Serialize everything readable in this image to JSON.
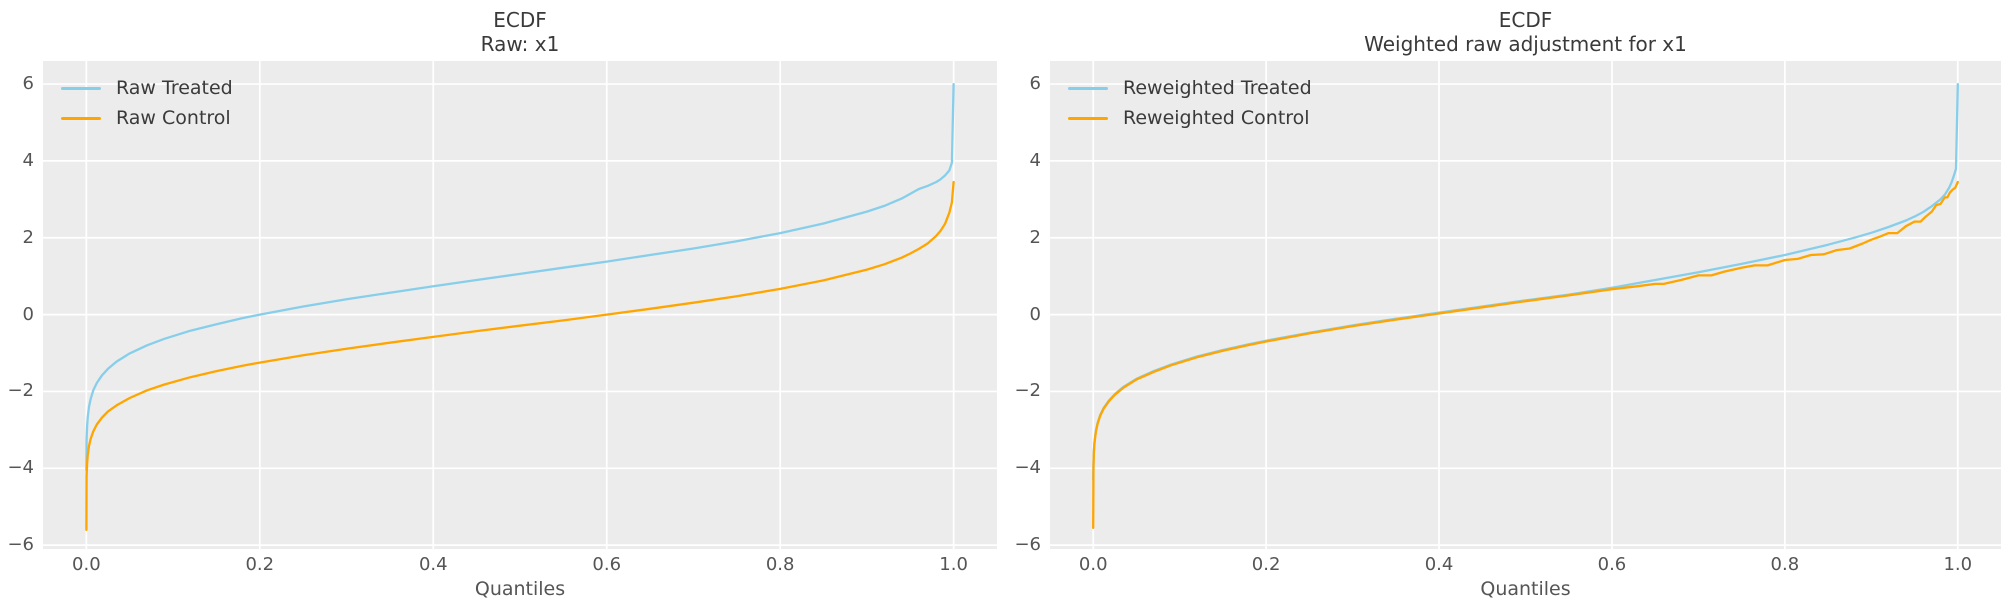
{
  "figure": {
    "background": "#ffffff",
    "plot_background": "#ececec",
    "grid_color": "#ffffff",
    "tick_color": "#555555",
    "title_color": "#3a3a3a"
  },
  "chart_data": [
    {
      "type": "line",
      "title_line1": "ECDF",
      "title_line2": "Raw: x1",
      "xlabel": "Quantiles",
      "xlim": [
        -0.05,
        1.05
      ],
      "ylim": [
        -6.1,
        6.6
      ],
      "grid": true,
      "legend_position": "upper left",
      "xticks": [
        {
          "v": 0.0,
          "label": "0.0"
        },
        {
          "v": 0.2,
          "label": "0.2"
        },
        {
          "v": 0.4,
          "label": "0.4"
        },
        {
          "v": 0.6,
          "label": "0.6"
        },
        {
          "v": 0.8,
          "label": "0.8"
        },
        {
          "v": 1.0,
          "label": "1.0"
        }
      ],
      "yticks": [
        {
          "v": 6,
          "label": "6"
        },
        {
          "v": 4,
          "label": "4"
        },
        {
          "v": 2,
          "label": "2"
        },
        {
          "v": 0,
          "label": "0"
        },
        {
          "v": -2,
          "label": "−2"
        },
        {
          "v": -4,
          "label": "−4"
        },
        {
          "v": -6,
          "label": "−6"
        }
      ],
      "series": [
        {
          "name": "Raw Treated",
          "color": "#87ceeb",
          "points": [
            [
              0,
              -4.05
            ],
            [
              0.0003,
              -3.26
            ],
            [
              0.0008,
              -2.92
            ],
            [
              0.0015,
              -2.68
            ],
            [
              0.003,
              -2.4
            ],
            [
              0.005,
              -2.19
            ],
            [
              0.008,
              -1.97
            ],
            [
              0.012,
              -1.78
            ],
            [
              0.018,
              -1.58
            ],
            [
              0.025,
              -1.41
            ],
            [
              0.035,
              -1.22
            ],
            [
              0.05,
              -1.01
            ],
            [
              0.07,
              -0.8
            ],
            [
              0.09,
              -0.63
            ],
            [
              0.12,
              -0.42
            ],
            [
              0.15,
              -0.25
            ],
            [
              0.18,
              -0.09
            ],
            [
              0.2,
              0.0
            ],
            [
              0.25,
              0.21
            ],
            [
              0.3,
              0.4
            ],
            [
              0.35,
              0.57
            ],
            [
              0.4,
              0.74
            ],
            [
              0.45,
              0.9
            ],
            [
              0.5,
              1.06
            ],
            [
              0.55,
              1.22
            ],
            [
              0.6,
              1.38
            ],
            [
              0.65,
              1.55
            ],
            [
              0.7,
              1.72
            ],
            [
              0.75,
              1.91
            ],
            [
              0.8,
              2.12
            ],
            [
              0.85,
              2.37
            ],
            [
              0.9,
              2.68
            ],
            [
              0.92,
              2.83
            ],
            [
              0.94,
              3.02
            ],
            [
              0.96,
              3.27
            ],
            [
              0.97,
              3.35
            ],
            [
              0.98,
              3.45
            ],
            [
              0.985,
              3.52
            ],
            [
              0.99,
              3.62
            ],
            [
              0.995,
              3.75
            ],
            [
              0.998,
              3.95
            ],
            [
              1.0,
              6.0
            ]
          ]
        },
        {
          "name": "Raw Control",
          "color": "#ffa500",
          "points": [
            [
              0,
              -5.6
            ],
            [
              0.0003,
              -4.2
            ],
            [
              0.0008,
              -3.89
            ],
            [
              0.0015,
              -3.67
            ],
            [
              0.003,
              -3.42
            ],
            [
              0.005,
              -3.23
            ],
            [
              0.008,
              -3.04
            ],
            [
              0.012,
              -2.86
            ],
            [
              0.018,
              -2.68
            ],
            [
              0.025,
              -2.52
            ],
            [
              0.035,
              -2.36
            ],
            [
              0.05,
              -2.17
            ],
            [
              0.07,
              -1.97
            ],
            [
              0.09,
              -1.82
            ],
            [
              0.12,
              -1.63
            ],
            [
              0.15,
              -1.47
            ],
            [
              0.18,
              -1.33
            ],
            [
              0.2,
              -1.25
            ],
            [
              0.25,
              -1.06
            ],
            [
              0.3,
              -0.89
            ],
            [
              0.35,
              -0.73
            ],
            [
              0.4,
              -0.58
            ],
            [
              0.45,
              -0.43
            ],
            [
              0.5,
              -0.29
            ],
            [
              0.55,
              -0.15
            ],
            [
              0.6,
              0.0
            ],
            [
              0.65,
              0.15
            ],
            [
              0.7,
              0.31
            ],
            [
              0.75,
              0.48
            ],
            [
              0.8,
              0.67
            ],
            [
              0.85,
              0.89
            ],
            [
              0.9,
              1.17
            ],
            [
              0.92,
              1.31
            ],
            [
              0.94,
              1.48
            ],
            [
              0.95,
              1.59
            ],
            [
              0.96,
              1.71
            ],
            [
              0.97,
              1.85
            ],
            [
              0.98,
              2.05
            ],
            [
              0.985,
              2.18
            ],
            [
              0.99,
              2.36
            ],
            [
              0.995,
              2.65
            ],
            [
              0.998,
              2.92
            ],
            [
              1.0,
              3.45
            ]
          ]
        }
      ]
    },
    {
      "type": "line",
      "title_line1": "ECDF",
      "title_line2": "Weighted raw adjustment for x1",
      "xlabel": "Quantiles",
      "xlim": [
        -0.05,
        1.05
      ],
      "ylim": [
        -6.1,
        6.6
      ],
      "grid": true,
      "legend_position": "upper left",
      "xticks": [
        {
          "v": 0.0,
          "label": "0.0"
        },
        {
          "v": 0.2,
          "label": "0.2"
        },
        {
          "v": 0.4,
          "label": "0.4"
        },
        {
          "v": 0.6,
          "label": "0.6"
        },
        {
          "v": 0.8,
          "label": "0.8"
        },
        {
          "v": 1.0,
          "label": "1.0"
        }
      ],
      "yticks": [
        {
          "v": 6,
          "label": "6"
        },
        {
          "v": 4,
          "label": "4"
        },
        {
          "v": 2,
          "label": "2"
        },
        {
          "v": 0,
          "label": "0"
        },
        {
          "v": -2,
          "label": "−2"
        },
        {
          "v": -4,
          "label": "−4"
        },
        {
          "v": -6,
          "label": "−6"
        }
      ],
      "series": [
        {
          "name": "Reweighted Treated",
          "color": "#87ceeb",
          "points": [
            [
              0,
              -4.3
            ],
            [
              0.0003,
              -3.9
            ],
            [
              0.0008,
              -3.55
            ],
            [
              0.0015,
              -3.32
            ],
            [
              0.003,
              -3.04
            ],
            [
              0.005,
              -2.83
            ],
            [
              0.008,
              -2.62
            ],
            [
              0.012,
              -2.43
            ],
            [
              0.018,
              -2.24
            ],
            [
              0.025,
              -2.07
            ],
            [
              0.035,
              -1.88
            ],
            [
              0.05,
              -1.67
            ],
            [
              0.07,
              -1.47
            ],
            [
              0.09,
              -1.3
            ],
            [
              0.12,
              -1.09
            ],
            [
              0.15,
              -0.92
            ],
            [
              0.18,
              -0.77
            ],
            [
              0.2,
              -0.68
            ],
            [
              0.25,
              -0.47
            ],
            [
              0.3,
              -0.28
            ],
            [
              0.35,
              -0.11
            ],
            [
              0.4,
              0.05
            ],
            [
              0.45,
              0.21
            ],
            [
              0.5,
              0.37
            ],
            [
              0.55,
              0.52
            ],
            [
              0.6,
              0.7
            ],
            [
              0.65,
              0.9
            ],
            [
              0.7,
              1.1
            ],
            [
              0.75,
              1.32
            ],
            [
              0.8,
              1.55
            ],
            [
              0.85,
              1.82
            ],
            [
              0.88,
              2.0
            ],
            [
              0.9,
              2.13
            ],
            [
              0.92,
              2.28
            ],
            [
              0.94,
              2.45
            ],
            [
              0.95,
              2.55
            ],
            [
              0.96,
              2.67
            ],
            [
              0.97,
              2.82
            ],
            [
              0.98,
              3.0
            ],
            [
              0.985,
              3.12
            ],
            [
              0.99,
              3.3
            ],
            [
              0.993,
              3.45
            ],
            [
              0.996,
              3.65
            ],
            [
              0.998,
              3.8
            ],
            [
              1.0,
              6.0
            ]
          ]
        },
        {
          "name": "Reweighted Control",
          "color": "#ffa500",
          "points": [
            [
              0,
              -5.55
            ],
            [
              0.0003,
              -3.93
            ],
            [
              0.0008,
              -3.57
            ],
            [
              0.0015,
              -3.34
            ],
            [
              0.003,
              -3.06
            ],
            [
              0.005,
              -2.85
            ],
            [
              0.008,
              -2.64
            ],
            [
              0.012,
              -2.45
            ],
            [
              0.018,
              -2.26
            ],
            [
              0.025,
              -2.09
            ],
            [
              0.035,
              -1.9
            ],
            [
              0.05,
              -1.69
            ],
            [
              0.07,
              -1.49
            ],
            [
              0.09,
              -1.32
            ],
            [
              0.12,
              -1.11
            ],
            [
              0.15,
              -0.94
            ],
            [
              0.18,
              -0.79
            ],
            [
              0.2,
              -0.7
            ],
            [
              0.25,
              -0.49
            ],
            [
              0.3,
              -0.3
            ],
            [
              0.35,
              -0.13
            ],
            [
              0.4,
              0.03
            ],
            [
              0.45,
              0.19
            ],
            [
              0.5,
              0.35
            ],
            [
              0.55,
              0.5
            ],
            [
              0.6,
              0.66
            ],
            [
              0.63,
              0.74
            ],
            [
              0.65,
              0.8
            ],
            [
              0.66,
              0.8
            ],
            [
              0.68,
              0.9
            ],
            [
              0.7,
              1.02
            ],
            [
              0.715,
              1.02
            ],
            [
              0.73,
              1.12
            ],
            [
              0.75,
              1.22
            ],
            [
              0.765,
              1.28
            ],
            [
              0.78,
              1.28
            ],
            [
              0.8,
              1.42
            ],
            [
              0.815,
              1.45
            ],
            [
              0.83,
              1.55
            ],
            [
              0.845,
              1.57
            ],
            [
              0.86,
              1.68
            ],
            [
              0.875,
              1.72
            ],
            [
              0.89,
              1.85
            ],
            [
              0.9,
              1.95
            ],
            [
              0.91,
              2.03
            ],
            [
              0.92,
              2.12
            ],
            [
              0.93,
              2.12
            ],
            [
              0.94,
              2.3
            ],
            [
              0.95,
              2.42
            ],
            [
              0.957,
              2.42
            ],
            [
              0.963,
              2.55
            ],
            [
              0.97,
              2.68
            ],
            [
              0.975,
              2.85
            ],
            [
              0.98,
              2.88
            ],
            [
              0.985,
              3.05
            ],
            [
              0.988,
              3.05
            ],
            [
              0.991,
              3.18
            ],
            [
              0.994,
              3.25
            ],
            [
              0.997,
              3.3
            ],
            [
              1.0,
              3.45
            ]
          ]
        }
      ]
    }
  ]
}
